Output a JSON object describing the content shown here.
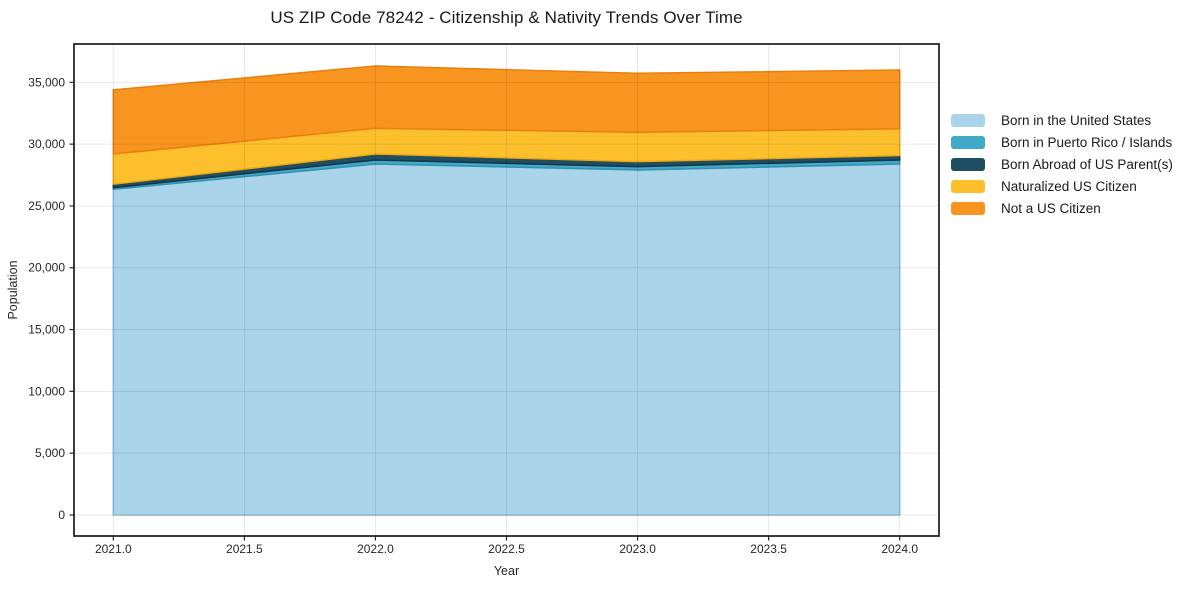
{
  "chart_data": {
    "type": "area",
    "stacked": true,
    "title": "US ZIP Code 78242 - Citizenship & Nativity Trends Over Time",
    "xlabel": "Year",
    "ylabel": "Population",
    "x": [
      2021,
      2022,
      2023,
      2024
    ],
    "x_ticks": [
      2021.0,
      2021.5,
      2022.0,
      2022.5,
      2023.0,
      2023.5,
      2024.0
    ],
    "x_tick_labels": [
      "2021.0",
      "2021.5",
      "2022.0",
      "2022.5",
      "2023.0",
      "2023.5",
      "2024.0"
    ],
    "y_ticks": [
      0,
      5000,
      10000,
      15000,
      20000,
      25000,
      30000,
      35000
    ],
    "y_tick_labels": [
      "0",
      "5,000",
      "10,000",
      "15,000",
      "20,000",
      "25,000",
      "30,000",
      "35,000"
    ],
    "xlim": [
      2020.85,
      2024.15
    ],
    "ylim": [
      -1700,
      38100
    ],
    "grid": true,
    "legend_position": "right-outside",
    "series": [
      {
        "name": "Born in the United States",
        "color": "#a9d4e9",
        "edge": "#8ec2db",
        "values": [
          26350,
          28390,
          27910,
          28390
        ]
      },
      {
        "name": "Born in Puerto Rico / Islands",
        "color": "#41a9c9",
        "edge": "#3391ae",
        "values": [
          130,
          330,
          270,
          330
        ]
      },
      {
        "name": "Born Abroad of US Parent(s)",
        "color": "#1f4d62",
        "edge": "#143544",
        "values": [
          280,
          480,
          400,
          360
        ]
      },
      {
        "name": "Naturalized US Citizen",
        "color": "#fcc02d",
        "edge": "#f0aa13",
        "values": [
          2450,
          2080,
          2380,
          2160
        ]
      },
      {
        "name": "Not a US Citizen",
        "color": "#f89520",
        "edge": "#e8800e",
        "values": [
          5180,
          5040,
          4770,
          4760
        ]
      }
    ],
    "totals": [
      34390,
      36320,
      35730,
      36000
    ]
  }
}
